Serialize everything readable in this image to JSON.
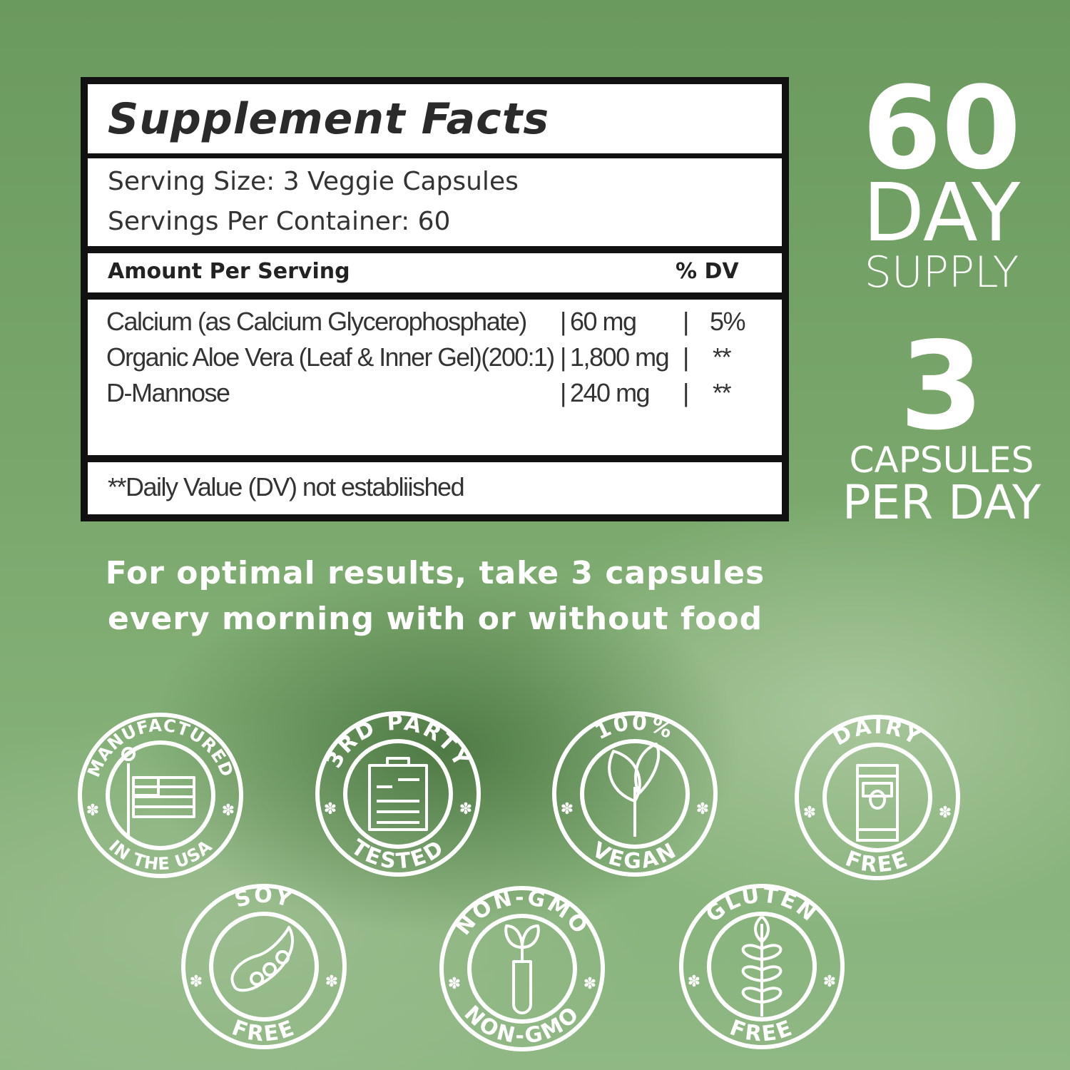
{
  "facts": {
    "title": "Supplement Facts",
    "serving_size": "Serving Size: 3 Veggie Capsules",
    "servings_per_container": "Servings Per Container: 60",
    "amount_header": "Amount Per Serving",
    "dv_header": "% DV",
    "ingredients": [
      {
        "name": "Calcium (as Calcium Glycerophosphate)",
        "amount": "60 mg",
        "dv": "5%"
      },
      {
        "name": "Organic Aloe Vera (Leaf & Inner Gel)(200:1)",
        "amount": "1,800 mg",
        "dv": "**"
      },
      {
        "name": "D-Mannose",
        "amount": "240 mg",
        "dv": "**"
      }
    ],
    "footnote": "**Daily Value (DV)  not establiished"
  },
  "supply": {
    "days": "60",
    "day_label": "DAY",
    "supply_label": "SUPPLY",
    "capsules": "3",
    "capsules_label": "CAPSULES",
    "per_day_label": "PER DAY"
  },
  "instructions": {
    "line1": "For optimal results, take 3 capsules",
    "line2": "every morning with or without food"
  },
  "badges": [
    {
      "top": "MANUFACTURED",
      "bottom": "IN THE USA",
      "icon": "us-flag-icon"
    },
    {
      "top": "3RD PARTY",
      "bottom": "TESTED",
      "icon": "clipboard-icon"
    },
    {
      "top": "100%",
      "bottom": "VEGAN",
      "icon": "leaf-icon"
    },
    {
      "top": "DAIRY",
      "bottom": "FREE",
      "icon": "milk-carton-icon"
    },
    {
      "top": "SOY",
      "bottom": "FREE",
      "icon": "soybean-icon"
    },
    {
      "top": "NON-GMO",
      "bottom": "NON-GMO",
      "icon": "test-tube-sprout-icon"
    },
    {
      "top": "GLUTEN",
      "bottom": "FREE",
      "icon": "wheat-icon"
    }
  ],
  "colors": {
    "background": "#7aa86c",
    "badge": "#ffffff",
    "table_border": "#111111"
  }
}
